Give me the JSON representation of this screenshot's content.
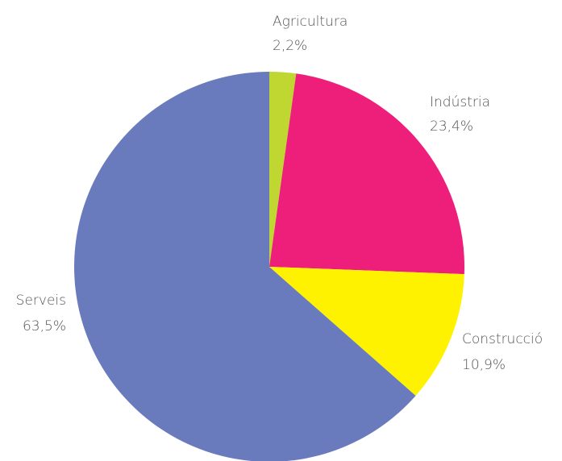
{
  "chart_data": {
    "type": "pie",
    "categories": [
      "Agricultura",
      "Indústria",
      "Construcció",
      "Serveis"
    ],
    "values": [
      2.2,
      23.4,
      10.9,
      63.5
    ],
    "value_labels": [
      "2,2%",
      "23,4%",
      "10,9%",
      "63,5%"
    ],
    "colors": [
      "#bfd730",
      "#ee1f7a",
      "#fff200",
      "#6a7bbd"
    ]
  }
}
